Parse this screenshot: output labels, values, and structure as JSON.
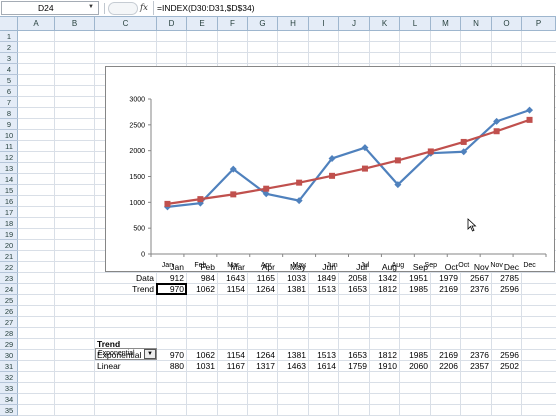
{
  "formula_bar": {
    "name_box": "D24",
    "fx_label": "fx",
    "formula": "=INDEX(D30:D31,$D$34)"
  },
  "columns": [
    "A",
    "B",
    "C",
    "D",
    "E",
    "F",
    "G",
    "H",
    "I",
    "J",
    "K",
    "L",
    "M",
    "N",
    "O",
    "P"
  ],
  "rows": [
    "1",
    "2",
    "3",
    "4",
    "5",
    "6",
    "7",
    "8",
    "9",
    "10",
    "11",
    "12",
    "13",
    "14",
    "15",
    "16",
    "17",
    "18",
    "19",
    "20",
    "21",
    "22",
    "23",
    "24",
    "25",
    "26",
    "27",
    "28",
    "29",
    "30",
    "31",
    "32",
    "33",
    "34",
    "35"
  ],
  "months": [
    "Jan",
    "Feb",
    "Mar",
    "Apr",
    "May",
    "Jun",
    "Jul",
    "Aug",
    "Sep",
    "Oct",
    "Nov",
    "Dec"
  ],
  "table": {
    "data_label": "Data",
    "trend_label": "Trend",
    "data": [
      "912",
      "984",
      "1643",
      "1165",
      "1033",
      "1849",
      "2058",
      "1342",
      "1951",
      "1979",
      "2567",
      "2785"
    ],
    "trend": [
      "970",
      "1062",
      "1154",
      "1264",
      "1381",
      "1513",
      "1653",
      "1812",
      "1985",
      "2169",
      "2376",
      "2596"
    ]
  },
  "dropdown": {
    "selected": "Exponential",
    "arrow": "▼"
  },
  "trend_section": {
    "heading": "Trend",
    "rows": [
      {
        "label": "Exponential",
        "values": [
          "970",
          "1062",
          "1154",
          "1264",
          "1381",
          "1513",
          "1653",
          "1812",
          "1985",
          "2169",
          "2376",
          "2596"
        ]
      },
      {
        "label": "Linear",
        "values": [
          "880",
          "1031",
          "1167",
          "1317",
          "1463",
          "1614",
          "1759",
          "1910",
          "2060",
          "2206",
          "2357",
          "2502"
        ]
      }
    ]
  },
  "chart_data": {
    "type": "line",
    "categories": [
      "Jan",
      "Feb",
      "Mar",
      "Apr",
      "May",
      "Jun",
      "Jul",
      "Aug",
      "Sep",
      "Oct",
      "Nov",
      "Dec"
    ],
    "ylim": [
      0,
      3000
    ],
    "yticks": [
      "0",
      "500",
      "1000",
      "1500",
      "2000",
      "2500",
      "3000"
    ],
    "grid": false,
    "legend": "none",
    "series": [
      {
        "values": [
          912,
          984,
          1643,
          1165,
          1033,
          1849,
          2058,
          1342,
          1951,
          1979,
          2567,
          2785
        ],
        "color": "#4f81bd",
        "marker": "diamond"
      },
      {
        "values": [
          970,
          1062,
          1154,
          1264,
          1381,
          1513,
          1653,
          1812,
          1985,
          2169,
          2376,
          2596
        ],
        "color": "#c0504d",
        "marker": "square"
      }
    ]
  }
}
